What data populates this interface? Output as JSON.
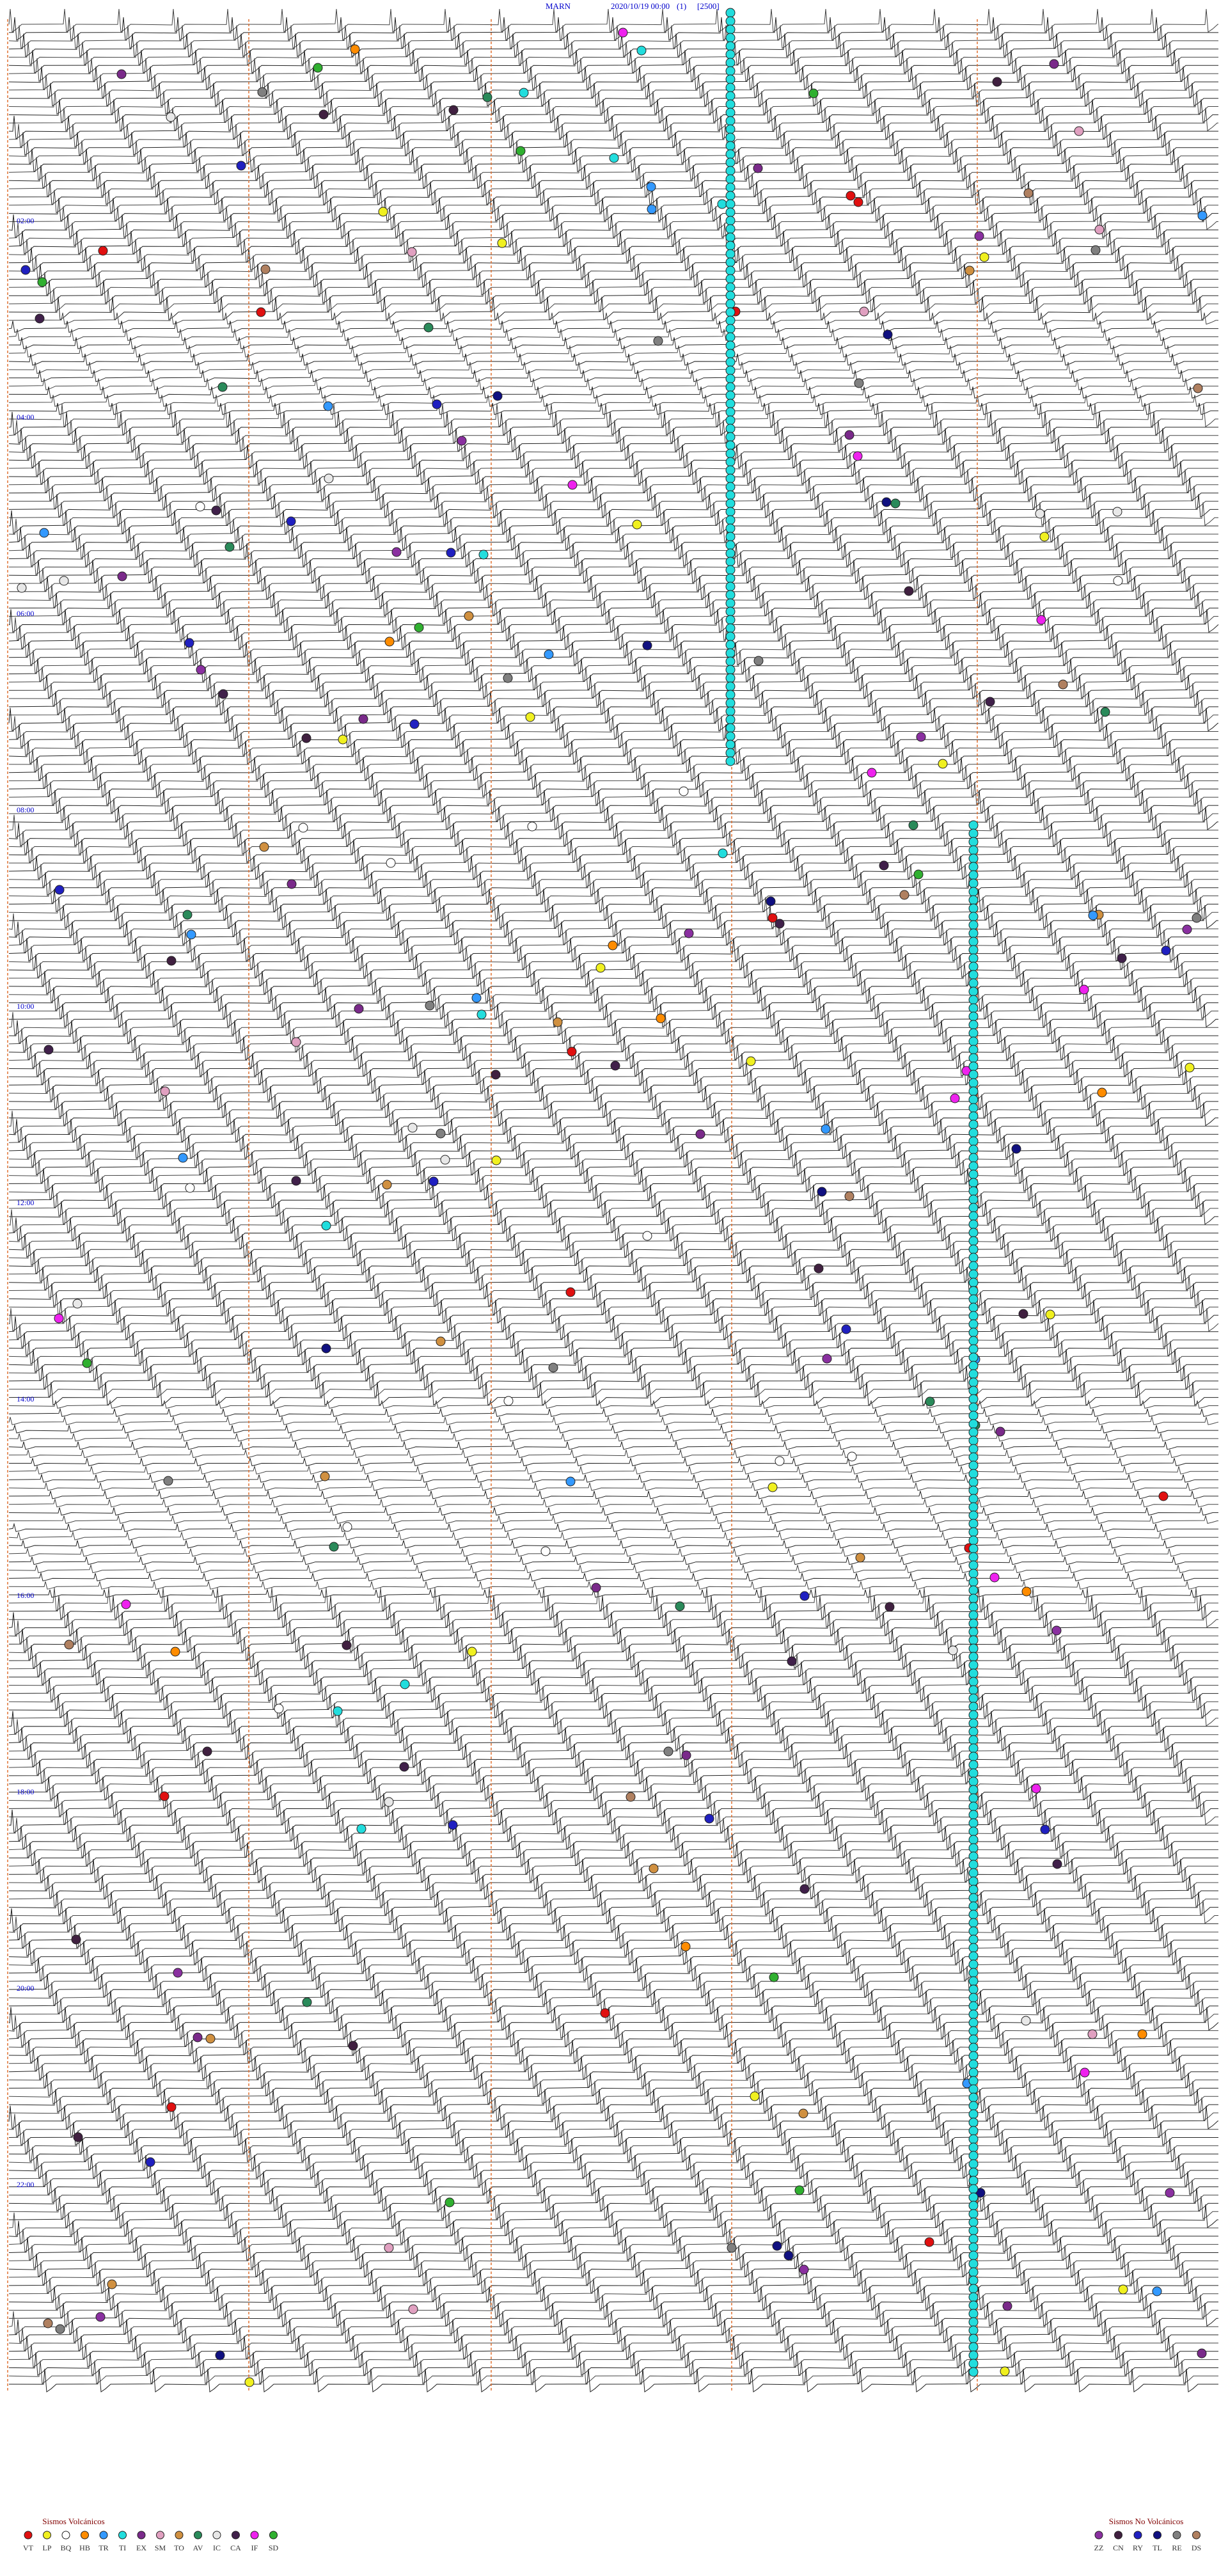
{
  "header": {
    "station": "MARN",
    "datetime": "2020/10/19 00:00",
    "channel": "(1)",
    "scale": "[2500]"
  },
  "time_labels": [
    "02:00",
    "04:00",
    "06:00",
    "08:00",
    "10:00",
    "12:00",
    "14:00",
    "16:00",
    "18:00",
    "20:00",
    "22:00"
  ],
  "legend_volcanic": {
    "title": "Sismos Volcánicos",
    "items": [
      {
        "code": "VT",
        "color": "#e01010"
      },
      {
        "code": "LP",
        "color": "#f0f020"
      },
      {
        "code": "BQ",
        "color": "#ffffff"
      },
      {
        "code": "HB",
        "color": "#ff8c00"
      },
      {
        "code": "TR",
        "color": "#3399ff"
      },
      {
        "code": "TI",
        "color": "#22dddd"
      },
      {
        "code": "EX",
        "color": "#7a2a8a"
      },
      {
        "code": "SM",
        "color": "#e0a0c0"
      },
      {
        "code": "TO",
        "color": "#d09040"
      },
      {
        "code": "AV",
        "color": "#2a8a5a"
      },
      {
        "code": "IC",
        "color": "#e8e8e8"
      },
      {
        "code": "CA",
        "color": "#40204a"
      },
      {
        "code": "IF",
        "color": "#ee22ee"
      },
      {
        "code": "SD",
        "color": "#30b030"
      }
    ]
  },
  "legend_nonvolcanic": {
    "title": "Sismos No Volcánicos",
    "items": [
      {
        "code": "ZZ",
        "color": "#8a30a0"
      },
      {
        "code": "CN",
        "color": "#402040"
      },
      {
        "code": "RY",
        "color": "#2020c0"
      },
      {
        "code": "TL",
        "color": "#101080"
      },
      {
        "code": "RE",
        "color": "#808080"
      },
      {
        "code": "DS",
        "color": "#b08060"
      }
    ]
  }
}
